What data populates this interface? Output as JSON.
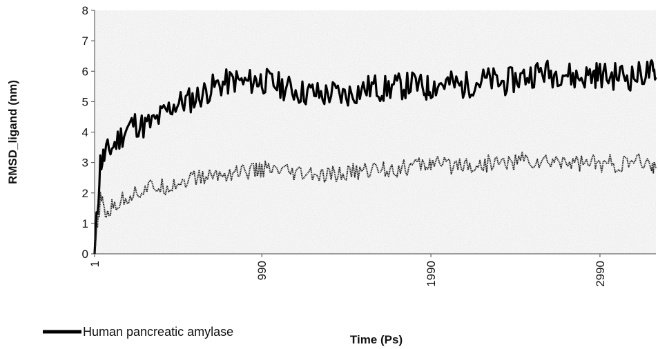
{
  "chart_data": {
    "type": "line",
    "xlabel": "Time (Ps)",
    "ylabel": "RMSD_ligand (nm)",
    "xlim": [
      1,
      3321
    ],
    "ylim": [
      0,
      8
    ],
    "y_ticks": [
      "0",
      "1",
      "2",
      "3",
      "4",
      "5",
      "6",
      "7",
      "8"
    ],
    "x_ticks": [
      {
        "value": 1,
        "label": "1"
      },
      {
        "value": 990,
        "label": "990"
      },
      {
        "value": 1990,
        "label": "1990"
      },
      {
        "value": 2990,
        "label": "2990"
      }
    ],
    "grid": false,
    "legend_position": "bottom-left",
    "plot_background": "#e4e4e4",
    "series": [
      {
        "name": "Human pancreatic amylase",
        "color": "#000000",
        "style": "thick-solid",
        "x": [
          1,
          35,
          70,
          120,
          175,
          230,
          290,
          350,
          410,
          470,
          530,
          590,
          650,
          710,
          770,
          830,
          890,
          950,
          990,
          1050,
          1110,
          1170,
          1230,
          1290,
          1350,
          1410,
          1470,
          1530,
          1590,
          1650,
          1710,
          1770,
          1830,
          1890,
          1950,
          1990,
          2050,
          2110,
          2170,
          2230,
          2290,
          2350,
          2410,
          2470,
          2530,
          2590,
          2650,
          2710,
          2770,
          2830,
          2890,
          2950,
          2990,
          3050,
          3110,
          3170,
          3230,
          3290,
          3321
        ],
        "values": [
          0.0,
          3.0,
          3.3,
          3.6,
          4.0,
          4.3,
          4.2,
          4.3,
          4.6,
          4.9,
          5.0,
          5.1,
          5.3,
          5.5,
          5.6,
          5.7,
          5.6,
          5.7,
          5.7,
          5.6,
          5.5,
          5.4,
          5.3,
          5.3,
          5.2,
          5.3,
          5.2,
          5.3,
          5.4,
          5.5,
          5.4,
          5.5,
          5.5,
          5.6,
          5.4,
          5.5,
          5.6,
          5.6,
          5.5,
          5.6,
          5.7,
          5.7,
          5.6,
          5.7,
          5.8,
          5.9,
          6.0,
          5.9,
          6.0,
          5.8,
          5.8,
          5.9,
          5.9,
          5.8,
          5.9,
          5.8,
          5.9,
          6.0,
          5.8
        ]
      },
      {
        "name": "",
        "color": "#222222",
        "style": "thin-dotted",
        "x": [
          1,
          35,
          70,
          120,
          175,
          230,
          290,
          350,
          410,
          470,
          530,
          590,
          650,
          710,
          770,
          830,
          890,
          950,
          990,
          1050,
          1110,
          1170,
          1230,
          1290,
          1350,
          1410,
          1470,
          1530,
          1590,
          1650,
          1710,
          1770,
          1830,
          1890,
          1950,
          1990,
          2050,
          2110,
          2170,
          2230,
          2290,
          2350,
          2410,
          2470,
          2530,
          2590,
          2650,
          2710,
          2770,
          2830,
          2890,
          2950,
          2990,
          3050,
          3110,
          3170,
          3230,
          3290,
          3321
        ],
        "values": [
          0.0,
          1.8,
          1.3,
          1.6,
          1.8,
          2.0,
          2.1,
          2.2,
          2.2,
          2.3,
          2.4,
          2.5,
          2.5,
          2.6,
          2.6,
          2.7,
          2.7,
          2.7,
          2.8,
          2.7,
          2.7,
          2.6,
          2.6,
          2.6,
          2.5,
          2.6,
          2.6,
          2.7,
          2.7,
          2.8,
          2.8,
          2.8,
          2.8,
          2.9,
          2.9,
          3.0,
          2.9,
          2.9,
          3.0,
          2.9,
          2.9,
          3.0,
          3.0,
          3.0,
          3.1,
          3.0,
          3.0,
          3.0,
          3.1,
          3.0,
          3.0,
          3.0,
          2.9,
          3.0,
          2.9,
          3.0,
          3.0,
          2.9,
          2.8
        ]
      }
    ]
  }
}
